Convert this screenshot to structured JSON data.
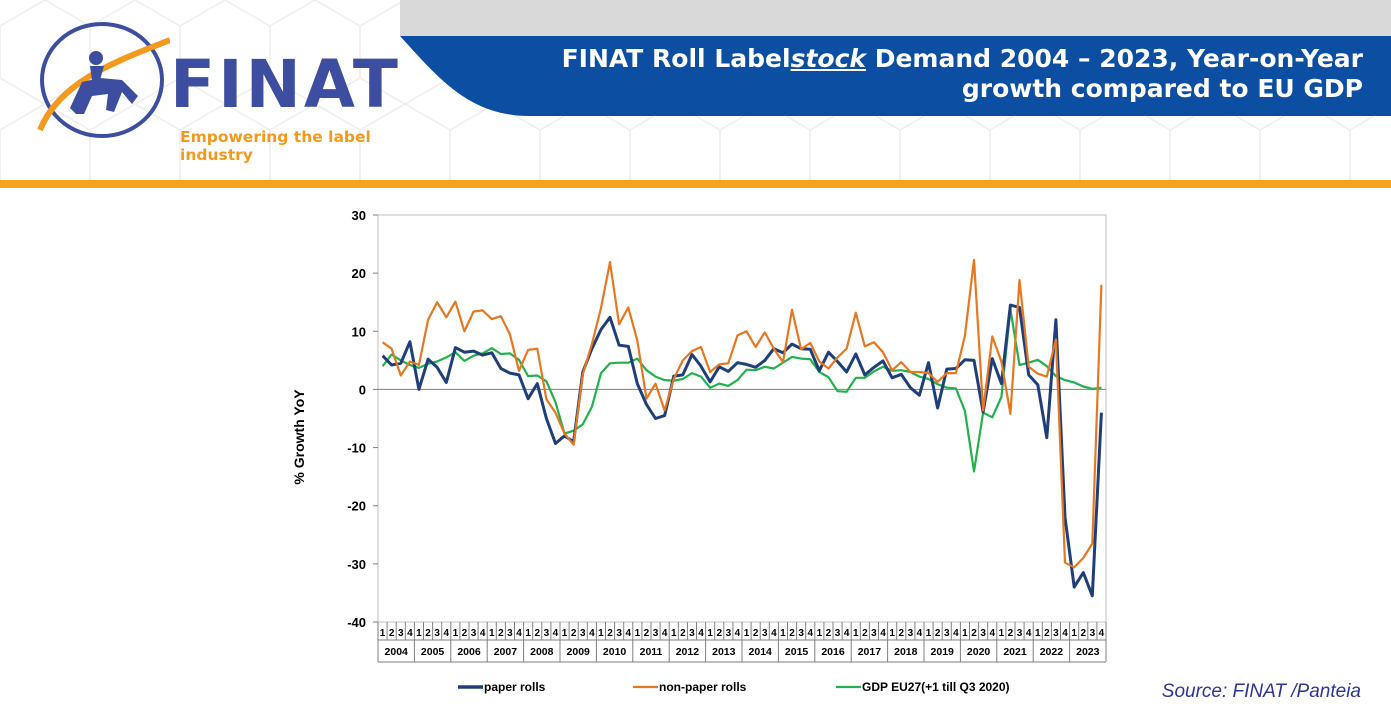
{
  "header": {
    "title_part1": "FINAT Roll Label",
    "title_emph": "stock",
    "title_part2": " Demand 2004 – 2023, Year-on-Year",
    "title_line2": "growth compared to EU GDP",
    "banner_color": "#0b4ea2",
    "accent_color": "#f7a21b"
  },
  "logo": {
    "wordmark": "FINAT",
    "tagline": "Empowering the label industry",
    "icon": "horse-rider-emblem-icon"
  },
  "source": "Source: FINAT /Panteia",
  "chart_data": {
    "type": "line",
    "ylabel": "% Growth YoY",
    "xlabel": "",
    "ylim": [
      -40,
      30
    ],
    "yticks": [
      -40,
      -30,
      -20,
      -10,
      0,
      10,
      20,
      30
    ],
    "quarter_labels": [
      "1",
      "2",
      "3",
      "4"
    ],
    "years": [
      "2004",
      "2005",
      "2006",
      "2007",
      "2008",
      "2009",
      "2010",
      "2011",
      "2012",
      "2013",
      "2014",
      "2015",
      "2016",
      "2017",
      "2018",
      "2019",
      "2020",
      "2021",
      "2022",
      "2023"
    ],
    "grid": false,
    "legend_position": "bottom",
    "series": [
      {
        "name": "paper rolls",
        "color": "#1f3f7a",
        "values": [
          5.8,
          4.2,
          4.5,
          8.2,
          0,
          5.2,
          3.8,
          1.2,
          7.2,
          6.4,
          6.6,
          5.9,
          6.3,
          3.6,
          2.8,
          2.5,
          -1.6,
          1,
          -5,
          -9.3,
          -8,
          -9,
          3,
          7,
          10.3,
          12.4,
          7.6,
          7.4,
          1,
          -2.6,
          -5,
          -4.5,
          2.3,
          2.5,
          6,
          4,
          1.3,
          3.9,
          3.1,
          4.6,
          4.3,
          3.8,
          5,
          7,
          6.3,
          7.8,
          7,
          6.9,
          3.2,
          6.4,
          4.8,
          3,
          6.1,
          2.5,
          3.8,
          4.9,
          2,
          2.6,
          0.3,
          -1,
          4.6,
          -3.2,
          3.5,
          3.6,
          5.1,
          5,
          -3.9,
          5.3,
          1,
          14.5,
          14.1,
          2.5,
          0.8,
          -8.3,
          12,
          -22,
          -34,
          -31.5,
          -35.5,
          -4
        ]
      },
      {
        "name": "non-paper rolls",
        "color": "#e87722",
        "values": [
          8.1,
          7,
          2.4,
          4.8,
          4.2,
          12,
          15,
          12.4,
          15.1,
          10,
          13.4,
          13.6,
          12.1,
          12.6,
          9.5,
          3.2,
          6.8,
          7,
          -1.7,
          -4,
          -7.6,
          -9.5,
          2.6,
          7.8,
          14,
          21.9,
          11.2,
          14.1,
          8.4,
          -1.6,
          1,
          -3.6,
          1.8,
          5,
          6.6,
          7.3,
          3,
          4.3,
          4.5,
          9.3,
          10,
          7.3,
          9.8,
          7,
          4.7,
          13.7,
          6.9,
          8,
          4.8,
          3.6,
          5.5,
          7,
          13.2,
          7.4,
          8.1,
          6.4,
          3.3,
          4.7,
          3,
          3,
          2.8,
          1.3,
          2.8,
          2.8,
          9.2,
          22.3,
          -3.6,
          9.1,
          4.8,
          -4.2,
          18.8,
          3.9,
          2.7,
          2.2,
          8.6,
          -29.8,
          -30.6,
          -29,
          -26.5,
          18
        ]
      },
      {
        "name": "GDP EU27(+1 till Q3 2020)",
        "color": "#22b14c",
        "values": [
          4,
          6,
          5,
          4.2,
          3.7,
          4.4,
          4.8,
          5.5,
          6.4,
          4.9,
          5.8,
          6.2,
          7.1,
          6.1,
          6.2,
          5.1,
          2.3,
          2.4,
          1.4,
          -2.2,
          -7.6,
          -7.1,
          -6,
          -3,
          2.8,
          4.5,
          4.6,
          4.6,
          5.3,
          3.3,
          2.2,
          1.6,
          1.5,
          1.8,
          2.8,
          2.2,
          0.3,
          1,
          0.6,
          1.6,
          3.4,
          3.3,
          3.9,
          3.6,
          4.6,
          5.6,
          5.3,
          5.2,
          3,
          2.1,
          -0.3,
          -0.4,
          2,
          2,
          3.1,
          3.9,
          3.2,
          3.3,
          3,
          2.2,
          1.8,
          0.9,
          0.3,
          0.2,
          -3.7,
          -14.1,
          -4,
          -4.8,
          -1.3,
          13.8,
          4.2,
          4.6,
          5.1,
          4,
          2.3,
          1.6,
          1.2,
          0.5,
          0.1,
          0.3
        ]
      }
    ]
  }
}
